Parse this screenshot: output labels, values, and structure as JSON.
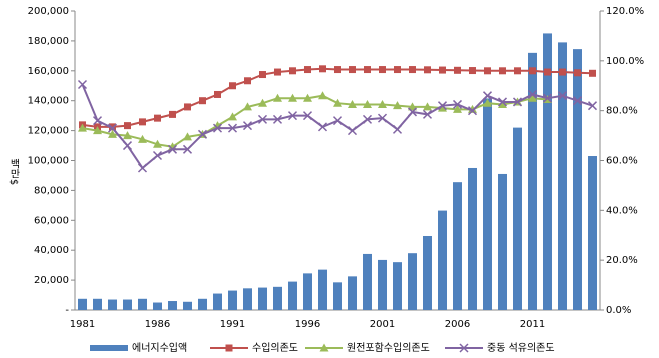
{
  "chart_data": {
    "type": "bar-line",
    "y_label": "백만$",
    "categories": [
      "1981",
      null,
      null,
      null,
      null,
      "1986",
      null,
      null,
      null,
      null,
      "1991",
      null,
      null,
      null,
      null,
      "1996",
      null,
      null,
      null,
      null,
      "2001",
      null,
      null,
      null,
      null,
      "2006",
      null,
      null,
      null,
      null,
      "2011",
      null,
      null,
      null,
      null
    ],
    "series": [
      {
        "name": "에너지수입액",
        "type": "bar",
        "color": "#4f81bd",
        "values": [
          7500,
          7500,
          7000,
          7000,
          7500,
          5000,
          6000,
          5500,
          7500,
          11000,
          13000,
          14500,
          15000,
          15500,
          19000,
          24500,
          27000,
          18500,
          22500,
          37500,
          33500,
          32000,
          38000,
          49500,
          66500,
          85500,
          95000,
          141500,
          91000,
          122000,
          172000,
          185000,
          179000,
          174500,
          103000
        ]
      },
      {
        "name": "수입의존도",
        "type": "line",
        "marker": "square",
        "axis": "y2",
        "color": "#c0504d",
        "values": [
          74.3,
          73.5,
          73.5,
          74,
          75.5,
          77,
          78.5,
          81.5,
          84,
          86.5,
          90,
          92,
          94.5,
          95.5,
          96,
          96.5,
          96.8,
          96.5,
          96.5,
          96.5,
          96.5,
          96.5,
          96.5,
          96.4,
          96.3,
          96.2,
          96.1,
          96,
          96,
          96,
          96,
          95.5,
          95.5,
          95.2,
          95
        ]
      },
      {
        "name": "원전포함수입의존도",
        "type": "line",
        "marker": "triangle",
        "axis": "y2",
        "color": "#9bbb59",
        "values": [
          73,
          72,
          70.5,
          70,
          68.5,
          66.5,
          65.5,
          69.5,
          70.5,
          74,
          77.5,
          81.5,
          83,
          85,
          85,
          85,
          86,
          83,
          82.5,
          82.5,
          82.5,
          82,
          81.5,
          81.5,
          81,
          80.5,
          80.5,
          83,
          82.5,
          83.5,
          85,
          84.5,
          null,
          null,
          null
        ]
      },
      {
        "name": "중동 석유의존도",
        "type": "line",
        "marker": "x",
        "axis": "y2",
        "color": "#8064a2",
        "values": [
          90.5,
          76,
          73,
          66,
          57,
          62,
          64.5,
          64.5,
          70.5,
          73,
          73,
          74,
          76.5,
          76.5,
          78,
          78,
          73.5,
          76,
          72,
          76.5,
          77,
          72.5,
          79.5,
          78.5,
          82,
          82.5,
          80,
          86,
          83.5,
          83.5,
          86.5,
          85,
          86,
          84,
          82
        ]
      }
    ],
    "ylim": [
      0,
      200000
    ],
    "yticks": [
      {
        "value": 0,
        "label": "-"
      },
      {
        "value": 20000,
        "label": "20,000"
      },
      {
        "value": 40000,
        "label": "40,000"
      },
      {
        "value": 60000,
        "label": "60,000"
      },
      {
        "value": 80000,
        "label": "80,000"
      },
      {
        "value": 100000,
        "label": "100,000"
      },
      {
        "value": 120000,
        "label": "120,000"
      },
      {
        "value": 140000,
        "label": "140,000"
      },
      {
        "value": 160000,
        "label": "160,000"
      },
      {
        "value": 180000,
        "label": "180,000"
      },
      {
        "value": 200000,
        "label": "200,000"
      }
    ],
    "y2lim": [
      0,
      120
    ],
    "y2ticks": [
      {
        "value": 0,
        "label": "0.0%"
      },
      {
        "value": 20,
        "label": "20.0%"
      },
      {
        "value": 40,
        "label": "40.0%"
      },
      {
        "value": 60,
        "label": "60.0%"
      },
      {
        "value": 80,
        "label": "80.0%"
      },
      {
        "value": 100,
        "label": "100.0%"
      },
      {
        "value": 120,
        "label": "120.0%"
      }
    ],
    "legend": "bottom"
  }
}
